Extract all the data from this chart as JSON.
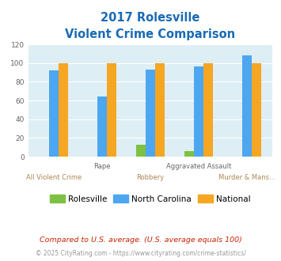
{
  "title_line1": "2017 Rolesville",
  "title_line2": "Violent Crime Comparison",
  "categories": [
    "All Violent Crime",
    "Rape",
    "Robbery",
    "Aggravated Assault",
    "Murder & Mans..."
  ],
  "rolesville": [
    0,
    0,
    13,
    6,
    0
  ],
  "north_carolina": [
    92,
    64,
    93,
    96,
    108
  ],
  "national": [
    100,
    100,
    100,
    100,
    100
  ],
  "colors": {
    "rolesville": "#7dc142",
    "north_carolina": "#4da6f0",
    "national": "#f5a623"
  },
  "ylim": [
    0,
    120
  ],
  "yticks": [
    0,
    20,
    40,
    60,
    80,
    100,
    120
  ],
  "title_color": "#1a6bb5",
  "background_color": "#deeef5",
  "legend_labels": [
    "Rolesville",
    "North Carolina",
    "National"
  ],
  "footnote1": "Compared to U.S. average. (U.S. average equals 100)",
  "footnote2": "© 2025 CityRating.com - https://www.cityrating.com/crime-statistics/",
  "footnote1_color": "#cc2200",
  "footnote2_color": "#999999",
  "label_top": [
    [
      1,
      "Rape"
    ],
    [
      3,
      "Aggravated Assault"
    ]
  ],
  "label_bottom": [
    [
      0,
      "All Violent Crime"
    ],
    [
      2,
      "Robbery"
    ],
    [
      4,
      "Murder & Mans..."
    ]
  ]
}
